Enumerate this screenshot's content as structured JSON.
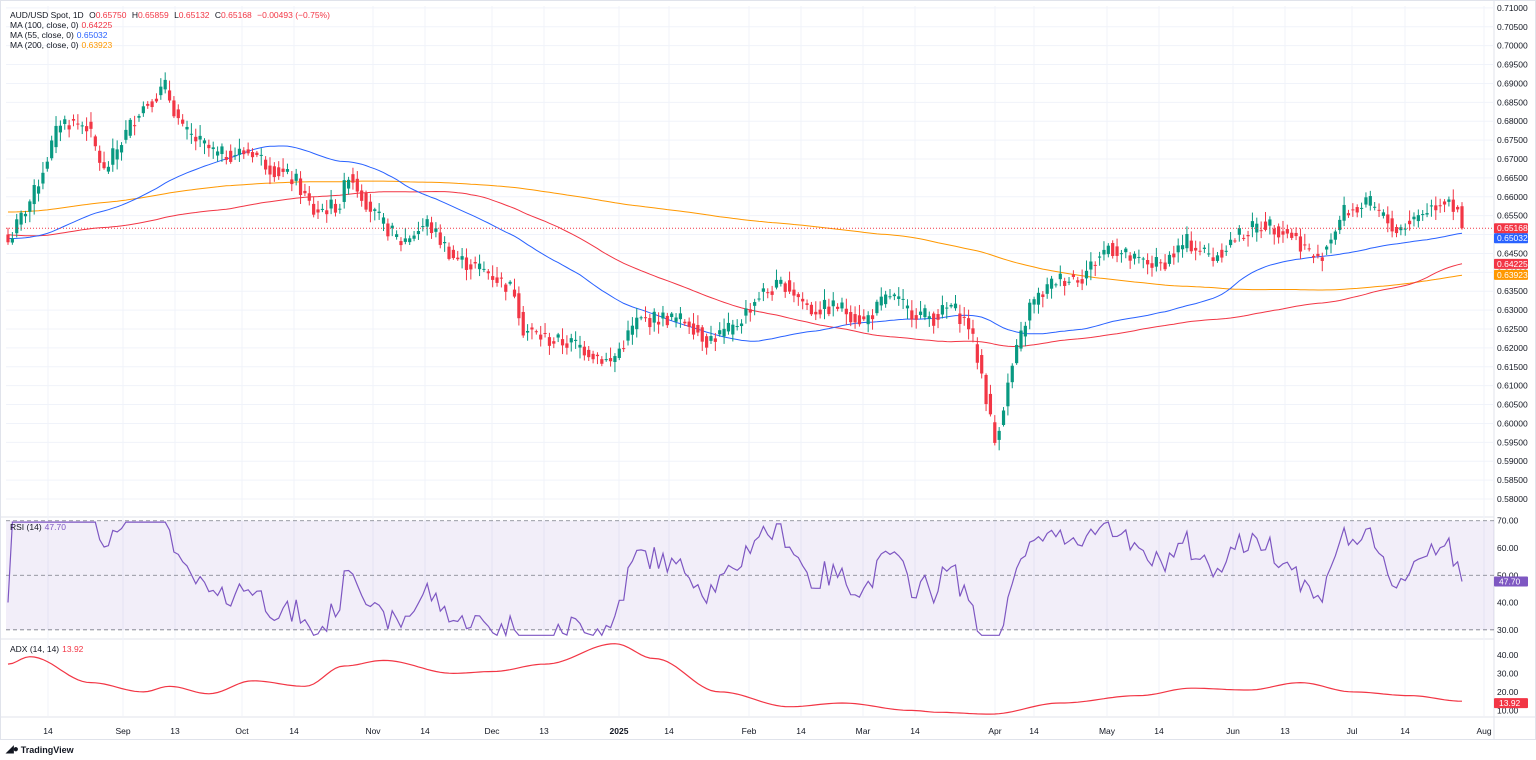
{
  "header": {
    "symbol": "AUD/USD Spot, 1D",
    "open_label": "O",
    "open": "0.65750",
    "high_label": "H",
    "high": "0.65859",
    "low_label": "L",
    "low": "0.65132",
    "close_label": "C",
    "close": "0.65168",
    "change": "−0.00493 (−0.75%)"
  },
  "indicators": {
    "ma100": {
      "label": "MA (100, close, 0)",
      "value": "0.64225",
      "color": "#f23645"
    },
    "ma55": {
      "label": "MA (55, close, 0)",
      "value": "0.65032",
      "color": "#2962ff"
    },
    "ma200": {
      "label": "MA (200, close, 0)",
      "value": "0.63923",
      "color": "#ff9800"
    },
    "rsi": {
      "label": "RSI (14)",
      "value": "47.70",
      "color": "#7e57c2"
    },
    "adx": {
      "label": "ADX (14, 14)",
      "value": "13.92",
      "color": "#f23645"
    }
  },
  "colors": {
    "up": "#089981",
    "down": "#f23645",
    "price_line": "#f23645"
  },
  "brand": {
    "name": "TradingView"
  },
  "chart_data": [
    {
      "type": "candlestick",
      "title": "AUD/USD Spot, 1D",
      "ylim": [
        0.5755,
        0.7105
      ],
      "y_ticks": [
        "0.71000",
        "0.70500",
        "0.70000",
        "0.69500",
        "0.69000",
        "0.68500",
        "0.68000",
        "0.67500",
        "0.67000",
        "0.66500",
        "0.66000",
        "0.65500",
        "0.65000",
        "0.64500",
        "0.64000",
        "0.63500",
        "0.63000",
        "0.62500",
        "0.62000",
        "0.61500",
        "0.61000",
        "0.60500",
        "0.60000",
        "0.59500",
        "0.59000",
        "0.58500",
        "0.58000"
      ],
      "x_ticks": [
        "14",
        "Sep",
        "13",
        "Oct",
        "14",
        "Nov",
        "14",
        "Dec",
        "13",
        "2025",
        "14",
        "Feb",
        "14",
        "Mar",
        "14",
        "Apr",
        "14",
        "May",
        "14",
        "Jun",
        "13",
        "Jul",
        "14",
        "Aug"
      ],
      "price_tags": [
        "0.65168",
        "0.65032",
        "0.64225",
        "0.63923"
      ],
      "close_path": [
        [
          0,
          0.648
        ],
        [
          6,
          0.661
        ],
        [
          12,
          0.68
        ],
        [
          18,
          0.679
        ],
        [
          22,
          0.6665
        ],
        [
          30,
          0.683
        ],
        [
          36,
          0.689
        ],
        [
          40,
          0.6775
        ],
        [
          48,
          0.671
        ],
        [
          56,
          0.672
        ],
        [
          60,
          0.668
        ],
        [
          66,
          0.664
        ],
        [
          70,
          0.656
        ],
        [
          76,
          0.658
        ],
        [
          78,
          0.6665
        ],
        [
          84,
          0.655
        ],
        [
          90,
          0.648
        ],
        [
          96,
          0.653
        ],
        [
          102,
          0.644
        ],
        [
          110,
          0.64
        ],
        [
          116,
          0.635
        ],
        [
          118,
          0.625
        ],
        [
          124,
          0.622
        ],
        [
          130,
          0.621
        ],
        [
          138,
          0.616
        ],
        [
          144,
          0.627
        ],
        [
          150,
          0.628
        ],
        [
          156,
          0.627
        ],
        [
          160,
          0.622
        ],
        [
          166,
          0.625
        ],
        [
          172,
          0.634
        ],
        [
          178,
          0.637
        ],
        [
          184,
          0.63
        ],
        [
          190,
          0.631
        ],
        [
          196,
          0.627
        ],
        [
          202,
          0.634
        ],
        [
          206,
          0.63
        ],
        [
          212,
          0.628
        ],
        [
          216,
          0.631
        ],
        [
          220,
          0.626
        ],
        [
          223,
          0.613
        ],
        [
          226,
          0.595
        ],
        [
          230,
          0.615
        ],
        [
          234,
          0.631
        ],
        [
          240,
          0.638
        ],
        [
          246,
          0.639
        ],
        [
          252,
          0.647
        ],
        [
          258,
          0.643
        ],
        [
          264,
          0.642
        ],
        [
          270,
          0.648
        ],
        [
          276,
          0.644
        ],
        [
          282,
          0.65
        ],
        [
          288,
          0.653
        ],
        [
          294,
          0.65
        ],
        [
          300,
          0.643
        ],
        [
          306,
          0.656
        ],
        [
          312,
          0.658
        ],
        [
          318,
          0.651
        ],
        [
          324,
          0.656
        ],
        [
          330,
          0.66
        ],
        [
          333,
          0.6517
        ]
      ],
      "ohlc_last": {
        "open": 0.6575,
        "high": 0.65859,
        "low": 0.65132,
        "close": 0.65168
      },
      "ma_last": {
        "MA 100": 0.64225,
        "MA 55": 0.65032,
        "MA 200": 0.63923
      }
    },
    {
      "type": "line",
      "title": "RSI (14)",
      "ylim": [
        27,
        71
      ],
      "y_ticks": [
        "70.00",
        "60.00",
        "50.00",
        "40.00",
        "30.00"
      ],
      "band": [
        30,
        70
      ],
      "midline": 50,
      "last": 47.7
    },
    {
      "type": "line",
      "title": "ADX (14, 14)",
      "ylim": [
        7,
        48
      ],
      "y_ticks": [
        "40.00",
        "30.00",
        "20.00",
        "10.00"
      ],
      "last": 13.92
    }
  ]
}
